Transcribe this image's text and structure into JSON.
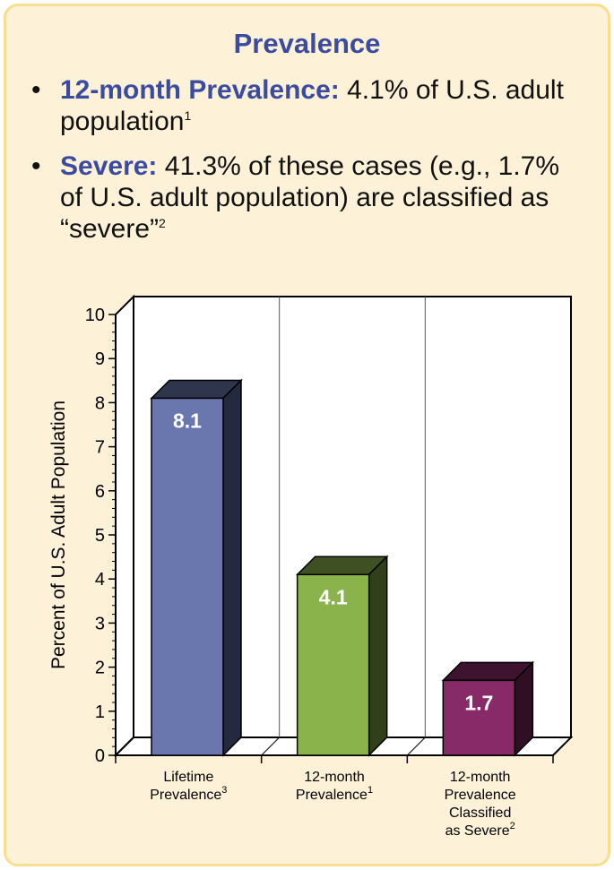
{
  "title": "Prevalence",
  "bullets": [
    {
      "label": "12-month Prevalence:",
      "text": " 4.1% of U.S. adult population",
      "sup": "1"
    },
    {
      "label": "Severe:",
      "text": " 41.3% of these cases (e.g., 1.7% of U.S. adult population) are classified as “severe”",
      "sup": "2"
    }
  ],
  "colors": {
    "accent": "#3b4ba0",
    "bar1": "#6a76ae",
    "bar2": "#8bb34c",
    "bar3": "#882a68"
  },
  "chart_data": {
    "type": "bar",
    "categories": [
      {
        "lines": [
          "Lifetime",
          "Prevalence"
        ],
        "sup": "3"
      },
      {
        "lines": [
          "12-month",
          "Prevalence"
        ],
        "sup": "1"
      },
      {
        "lines": [
          "12-month",
          "Prevalence",
          "Classified",
          "as Severe"
        ],
        "sup": "2"
      }
    ],
    "values": [
      8.1,
      4.1,
      1.7
    ],
    "value_labels": [
      "8.1",
      "4.1",
      "1.7"
    ],
    "ylabel": "Percent of U.S. Adult Population",
    "ylim": [
      0,
      10
    ],
    "yticks": [
      0,
      1,
      2,
      3,
      4,
      5,
      6,
      7,
      8,
      9,
      10
    ],
    "grid": "vertical dividers between categories",
    "style": "3d"
  }
}
